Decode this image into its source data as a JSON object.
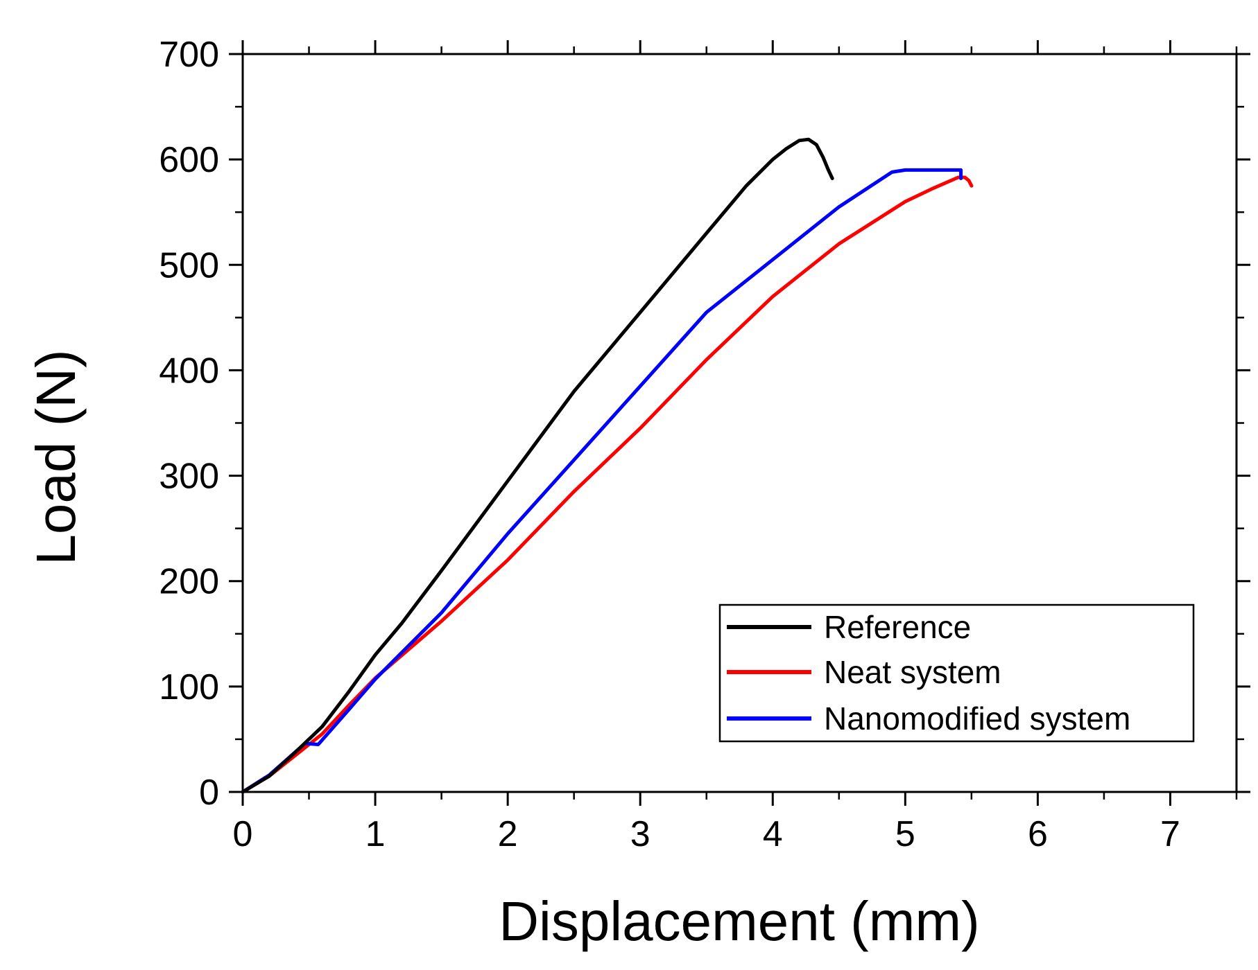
{
  "chart_data": {
    "type": "line",
    "title": "",
    "xlabel": "Displacement (mm)",
    "ylabel": "Load (N)",
    "xlim": [
      0,
      7.5
    ],
    "ylim": [
      0,
      700
    ],
    "xticks": [
      0,
      1,
      2,
      3,
      4,
      5,
      6,
      7
    ],
    "yticks": [
      0,
      100,
      200,
      300,
      400,
      500,
      600,
      700
    ],
    "xtick_labels": [
      "0",
      "1",
      "2",
      "3",
      "4",
      "5",
      "6",
      "7"
    ],
    "ytick_labels": [
      "0",
      "100",
      "200",
      "300",
      "400",
      "500",
      "600",
      "700"
    ],
    "grid": false,
    "legend_position": "bottom-right",
    "series": [
      {
        "name": "Reference",
        "color": "#000000",
        "x": [
          0,
          0.2,
          0.4,
          0.6,
          0.8,
          1.0,
          1.2,
          1.5,
          2.0,
          2.5,
          3.0,
          3.5,
          3.8,
          4.0,
          4.1,
          4.2,
          4.27,
          4.33,
          4.38,
          4.42,
          4.45
        ],
        "y": [
          0,
          15,
          38,
          62,
          95,
          130,
          160,
          210,
          295,
          380,
          455,
          530,
          575,
          600,
          610,
          618,
          619,
          614,
          602,
          590,
          582
        ]
      },
      {
        "name": "Neat system",
        "color": "#ff0000",
        "x": [
          0,
          0.2,
          0.4,
          0.6,
          0.8,
          1.0,
          1.5,
          2.0,
          2.5,
          3.0,
          3.5,
          4.0,
          4.5,
          5.0,
          5.2,
          5.4,
          5.45,
          5.48,
          5.5
        ],
        "y": [
          0,
          15,
          35,
          55,
          82,
          108,
          162,
          220,
          285,
          345,
          410,
          470,
          520,
          560,
          572,
          583,
          583,
          580,
          575
        ]
      },
      {
        "name": "Nanomodified system",
        "color": "#0000ff",
        "x": [
          0,
          0.2,
          0.47,
          0.57,
          0.8,
          1.0,
          1.5,
          2.0,
          2.5,
          3.0,
          3.5,
          4.0,
          4.5,
          4.9,
          5.0,
          5.42,
          5.42
        ],
        "y": [
          0,
          16,
          46,
          45,
          78,
          107,
          170,
          245,
          315,
          385,
          455,
          505,
          555,
          588,
          590,
          590,
          582
        ]
      }
    ]
  }
}
